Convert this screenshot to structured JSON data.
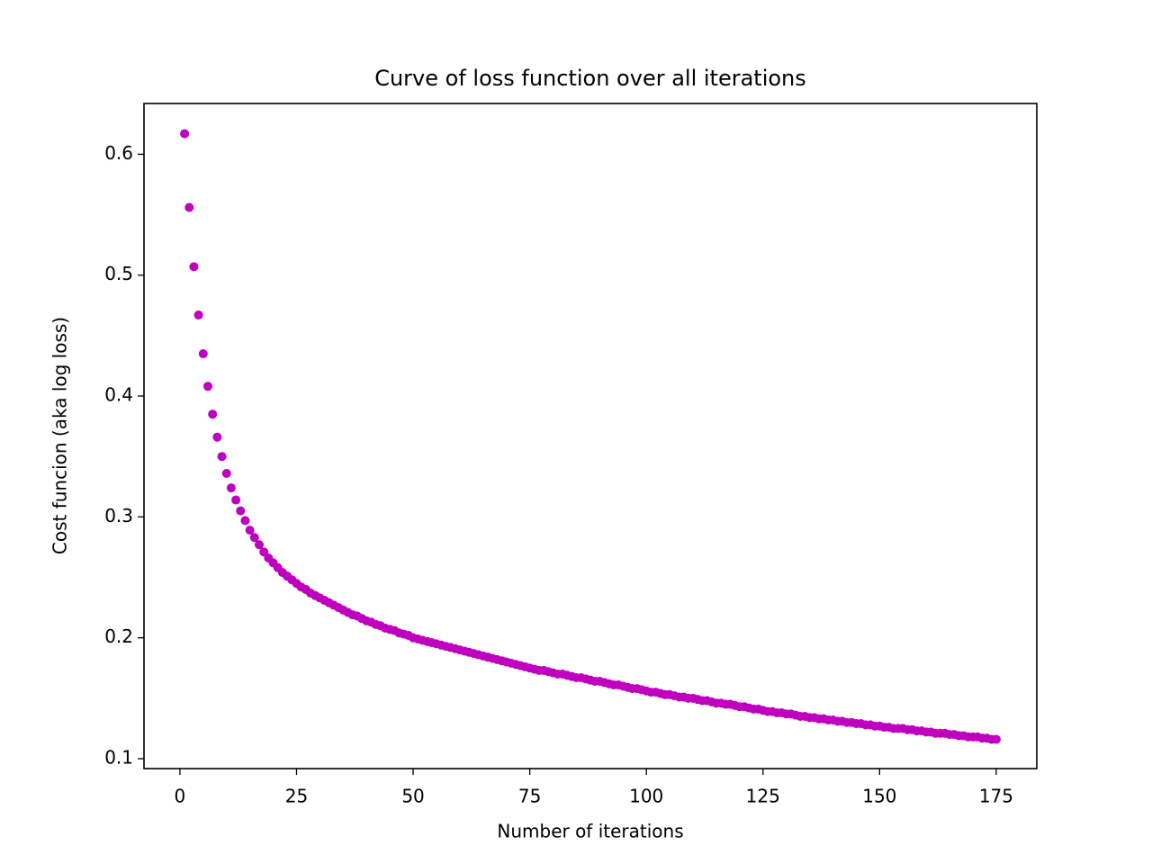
{
  "chart_data": {
    "type": "scatter",
    "title": "Curve of loss function over all iterations",
    "x_label": "Number of iterations",
    "y_label": "Cost funcion (aka log loss)",
    "color": "#bf00bf",
    "xlim": [
      -7.7,
      183.7
    ],
    "ylim": [
      0.0918,
      0.642
    ],
    "xticks": [
      0,
      25,
      50,
      75,
      100,
      125,
      150,
      175
    ],
    "yticks": [
      0.1,
      0.2,
      0.3,
      0.4,
      0.5,
      0.6
    ],
    "x": [
      1,
      2,
      3,
      4,
      5,
      6,
      7,
      8,
      9,
      10,
      11,
      12,
      13,
      14,
      15,
      16,
      17,
      18,
      19,
      20,
      21,
      22,
      23,
      24,
      25,
      26,
      27,
      28,
      29,
      30,
      31,
      32,
      33,
      34,
      35,
      36,
      37,
      38,
      39,
      40,
      41,
      42,
      43,
      44,
      45,
      46,
      47,
      48,
      49,
      50,
      51,
      52,
      53,
      54,
      55,
      56,
      57,
      58,
      59,
      60,
      61,
      62,
      63,
      64,
      65,
      66,
      67,
      68,
      69,
      70,
      71,
      72,
      73,
      74,
      75,
      76,
      77,
      78,
      79,
      80,
      81,
      82,
      83,
      84,
      85,
      86,
      87,
      88,
      89,
      90,
      91,
      92,
      93,
      94,
      95,
      96,
      97,
      98,
      99,
      100,
      101,
      102,
      103,
      104,
      105,
      106,
      107,
      108,
      109,
      110,
      111,
      112,
      113,
      114,
      115,
      116,
      117,
      118,
      119,
      120,
      121,
      122,
      123,
      124,
      125,
      126,
      127,
      128,
      129,
      130,
      131,
      132,
      133,
      134,
      135,
      136,
      137,
      138,
      139,
      140,
      141,
      142,
      143,
      144,
      145,
      146,
      147,
      148,
      149,
      150,
      151,
      152,
      153,
      154,
      155,
      156,
      157,
      158,
      159,
      160,
      161,
      162,
      163,
      164,
      165,
      166,
      167,
      168,
      169,
      170,
      171,
      172,
      173,
      174,
      175
    ],
    "values": [
      0.617,
      0.556,
      0.507,
      0.467,
      0.435,
      0.408,
      0.385,
      0.366,
      0.35,
      0.336,
      0.324,
      0.314,
      0.305,
      0.297,
      0.289,
      0.283,
      0.277,
      0.271,
      0.266,
      0.262,
      0.258,
      0.254,
      0.251,
      0.248,
      0.245,
      0.242,
      0.24,
      0.237,
      0.235,
      0.233,
      0.231,
      0.229,
      0.227,
      0.225,
      0.223,
      0.221,
      0.219,
      0.218,
      0.216,
      0.214,
      0.213,
      0.211,
      0.21,
      0.208,
      0.207,
      0.206,
      0.204,
      0.203,
      0.202,
      0.2,
      0.199,
      0.198,
      0.197,
      0.196,
      0.195,
      0.194,
      0.193,
      0.192,
      0.191,
      0.19,
      0.189,
      0.188,
      0.187,
      0.186,
      0.185,
      0.184,
      0.183,
      0.182,
      0.181,
      0.18,
      0.179,
      0.178,
      0.177,
      0.176,
      0.175,
      0.174,
      0.173,
      0.173,
      0.172,
      0.171,
      0.17,
      0.17,
      0.169,
      0.168,
      0.167,
      0.167,
      0.166,
      0.165,
      0.164,
      0.164,
      0.163,
      0.162,
      0.161,
      0.161,
      0.16,
      0.159,
      0.158,
      0.158,
      0.157,
      0.156,
      0.155,
      0.155,
      0.154,
      0.153,
      0.153,
      0.152,
      0.151,
      0.151,
      0.15,
      0.15,
      0.149,
      0.148,
      0.148,
      0.147,
      0.146,
      0.146,
      0.145,
      0.145,
      0.144,
      0.143,
      0.143,
      0.142,
      0.141,
      0.141,
      0.14,
      0.139,
      0.139,
      0.138,
      0.138,
      0.137,
      0.137,
      0.136,
      0.135,
      0.135,
      0.134,
      0.134,
      0.133,
      0.133,
      0.132,
      0.132,
      0.131,
      0.131,
      0.13,
      0.13,
      0.129,
      0.129,
      0.128,
      0.128,
      0.127,
      0.127,
      0.126,
      0.126,
      0.125,
      0.125,
      0.125,
      0.124,
      0.124,
      0.123,
      0.123,
      0.122,
      0.122,
      0.121,
      0.121,
      0.121,
      0.12,
      0.12,
      0.119,
      0.119,
      0.118,
      0.118,
      0.118,
      0.117,
      0.117,
      0.116,
      0.116
    ]
  }
}
